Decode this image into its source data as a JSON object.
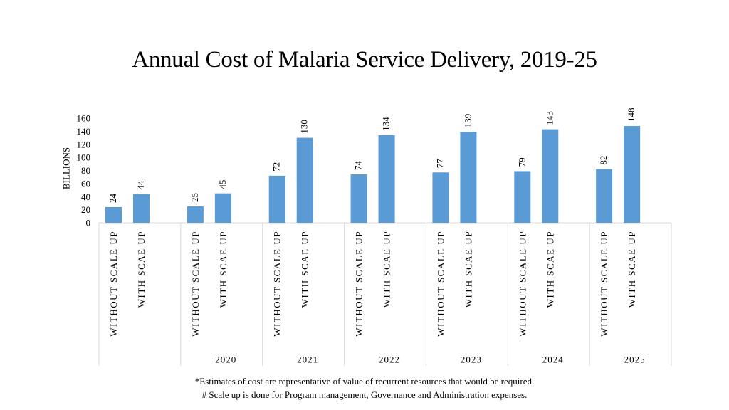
{
  "chart_data": {
    "type": "bar",
    "title": "Annual Cost of Malaria Service Delivery, 2019-25",
    "ylabel": "BILLIONS",
    "xlabel": "",
    "ylim": [
      0,
      160
    ],
    "y_ticks": [
      0,
      20,
      40,
      60,
      80,
      100,
      120,
      140,
      160
    ],
    "grid": false,
    "bar_color": "#5b9bd5",
    "groups": [
      {
        "year": "",
        "categories": [
          "WITHOUT SCALE UP",
          "WITH SCAE UP"
        ],
        "values": [
          24,
          44
        ]
      },
      {
        "year": "2020",
        "categories": [
          "WITHOUT SCALE UP",
          "WITH SCAE UP"
        ],
        "values": [
          25,
          45
        ]
      },
      {
        "year": "2021",
        "categories": [
          "WITHOUT SCALE UP",
          "WITH SCAE UP"
        ],
        "values": [
          72,
          130
        ]
      },
      {
        "year": "2022",
        "categories": [
          "WITHOUT SCALE UP",
          "WITH SCAE UP"
        ],
        "values": [
          74,
          134
        ]
      },
      {
        "year": "2023",
        "categories": [
          "WITHOUT SCALE UP",
          "WITH SCAE UP"
        ],
        "values": [
          77,
          139
        ]
      },
      {
        "year": "2024",
        "categories": [
          "WITHOUT SCALE UP",
          "WITH SCAE UP"
        ],
        "values": [
          79,
          143
        ]
      },
      {
        "year": "2025",
        "categories": [
          "WITHOUT SCALE UP",
          "WITH SCAE UP"
        ],
        "values": [
          82,
          148
        ]
      }
    ]
  },
  "footnotes": {
    "line1": "*Estimates of cost are representative of value of recurrent resources that would be required.",
    "line2": "# Scale up is done for Program management, Governance and Administration expenses."
  }
}
